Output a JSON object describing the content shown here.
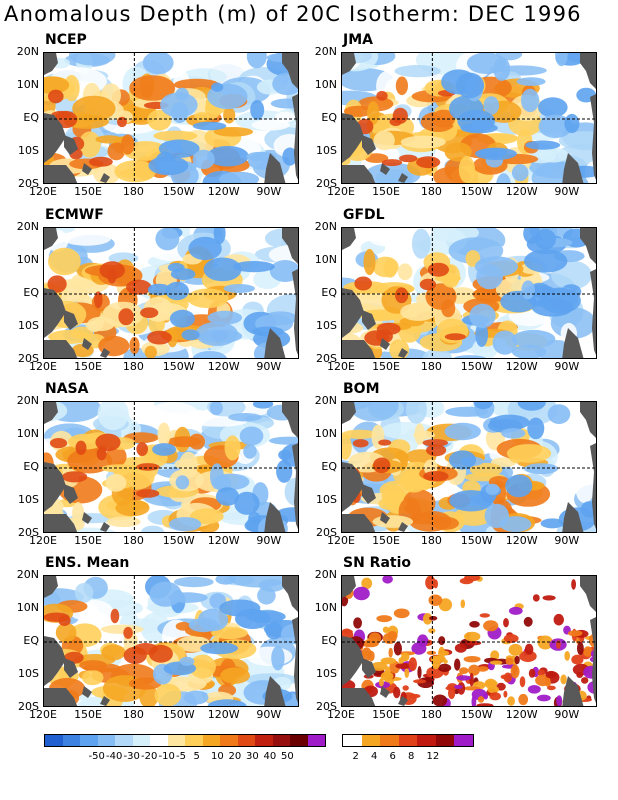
{
  "title": "Anomalous Depth (m) of 20C Isotherm: DEC 1996",
  "panels": [
    {
      "name": "NCEP"
    },
    {
      "name": "JMA"
    },
    {
      "name": "ECMWF"
    },
    {
      "name": "GFDL"
    },
    {
      "name": "NASA"
    },
    {
      "name": "BOM"
    },
    {
      "name": "ENS. Mean"
    },
    {
      "name": "SN Ratio"
    }
  ],
  "lat_labels": [
    "20N",
    "10N",
    "EQ",
    "10S",
    "20S"
  ],
  "lon_labels": [
    "120E",
    "150E",
    "180",
    "150W",
    "120W",
    "90W"
  ],
  "colorbars": {
    "anomaly": {
      "colors": [
        "#1f5fcf",
        "#3d82e0",
        "#5ea3ef",
        "#86bdf5",
        "#b2d9f8",
        "#d6f0fb",
        "#ffffff",
        "#ffe6a0",
        "#ffcf5a",
        "#f5a623",
        "#f07a1a",
        "#e04a14",
        "#c0200f",
        "#961010",
        "#6a0000",
        "#a01cc8"
      ],
      "labels": [
        "-50",
        "-40",
        "-30",
        "-20",
        "-10",
        "-5",
        "5",
        "10",
        "20",
        "30",
        "40",
        "50"
      ]
    },
    "sn": {
      "colors": [
        "#ffffff",
        "#f5a623",
        "#f07a1a",
        "#e0401a",
        "#c01a10",
        "#900808",
        "#a01cc8"
      ],
      "labels": [
        "2",
        "4",
        "6",
        "8",
        "12"
      ]
    }
  }
}
